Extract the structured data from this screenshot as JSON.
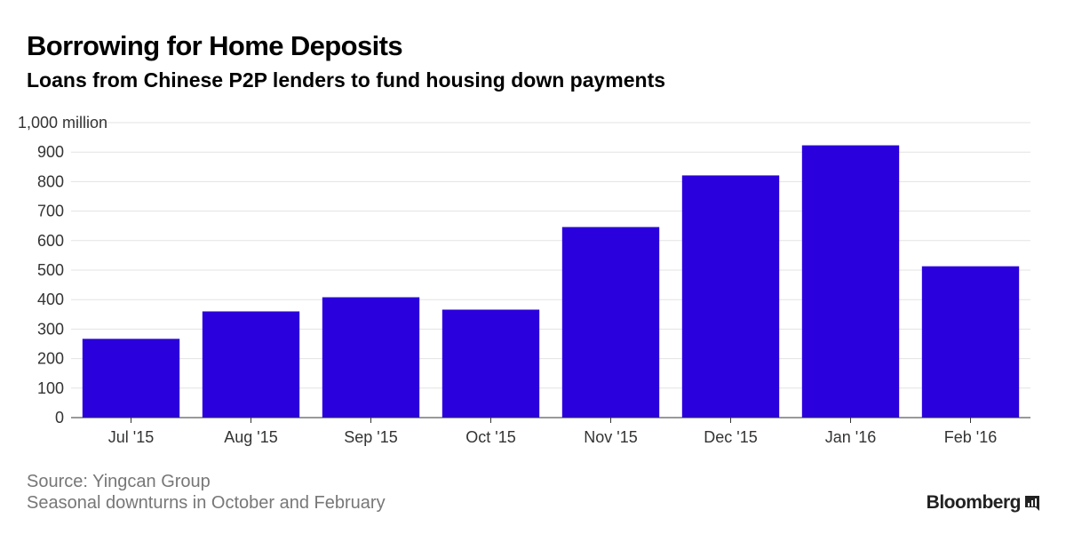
{
  "header": {
    "title": "Borrowing for Home Deposits",
    "subtitle": "Loans from Chinese P2P lenders to fund housing down payments"
  },
  "footer": {
    "source": "Source: Yingcan Group",
    "note": "Seasonal downturns in October and February",
    "brand": "Bloomberg",
    "brand_icon": "bloomberg-terminal-icon"
  },
  "chart_data": {
    "type": "bar",
    "categories": [
      "Jul '15",
      "Aug '15",
      "Sep '15",
      "Oct '15",
      "Nov '15",
      "Dec '15",
      "Jan '16",
      "Feb '16"
    ],
    "values": [
      267,
      360,
      408,
      366,
      646,
      821,
      923,
      513
    ],
    "title": "Borrowing for Home Deposits",
    "subtitle": "Loans from Chinese P2P lenders to fund housing down payments",
    "ylim": [
      0,
      1000
    ],
    "yticks": [
      0,
      100,
      200,
      300,
      400,
      500,
      600,
      700,
      800,
      900,
      1000
    ],
    "ytick_labels": [
      "0",
      "100",
      "200",
      "300",
      "400",
      "500",
      "600",
      "700",
      "800",
      "900",
      "1,000 million"
    ],
    "grid": true,
    "legend": "none",
    "bar_color": "#2a00dc",
    "grid_color": "#e3e3e3",
    "axis_color": "#333333"
  }
}
